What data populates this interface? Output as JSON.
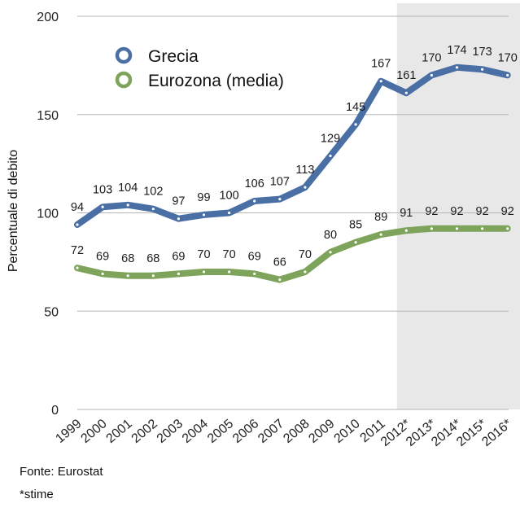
{
  "chart_data": {
    "type": "line",
    "title": "",
    "xlabel": "",
    "ylabel": "Percentuale di debito",
    "ylim": [
      0,
      200
    ],
    "yticks": [
      0,
      50,
      100,
      150,
      200
    ],
    "grid": true,
    "legend_position": "top-left",
    "categories": [
      "1999",
      "2000",
      "2001",
      "2002",
      "2003",
      "2004",
      "2005",
      "2006",
      "2007",
      "2008",
      "2009",
      "2010",
      "2011",
      "2012*",
      "2013*",
      "2014*",
      "2015*",
      "2016*"
    ],
    "highlight_region": {
      "from": "2012*",
      "to": "2016*",
      "color": "#e8e8e8"
    },
    "series": [
      {
        "name": "Grecia",
        "color": "#4a6fa5",
        "values": [
          94,
          103,
          104,
          102,
          97,
          99,
          100,
          106,
          107,
          113,
          129,
          145,
          167,
          161,
          170,
          174,
          173,
          170
        ],
        "labels": [
          "94",
          "103",
          "104",
          "102",
          "97",
          "99",
          "100",
          "106",
          "107",
          "113",
          "129",
          "145",
          "167",
          "161",
          "170",
          "174",
          "173",
          "170"
        ]
      },
      {
        "name": "Eurozona (media)",
        "color": "#7ea35a",
        "values": [
          72,
          69,
          68,
          68,
          69,
          70,
          70,
          69,
          66,
          70,
          80,
          85,
          89,
          91,
          92,
          92,
          92,
          92
        ],
        "labels": [
          "72",
          "69",
          "68",
          "68",
          "69",
          "70",
          "70",
          "69",
          "66",
          "70",
          "80",
          "85",
          "89",
          "91",
          "92",
          "92",
          "92",
          "92"
        ]
      }
    ]
  },
  "footer": {
    "source": "Fonte: Eurostat",
    "note": "*stime"
  }
}
